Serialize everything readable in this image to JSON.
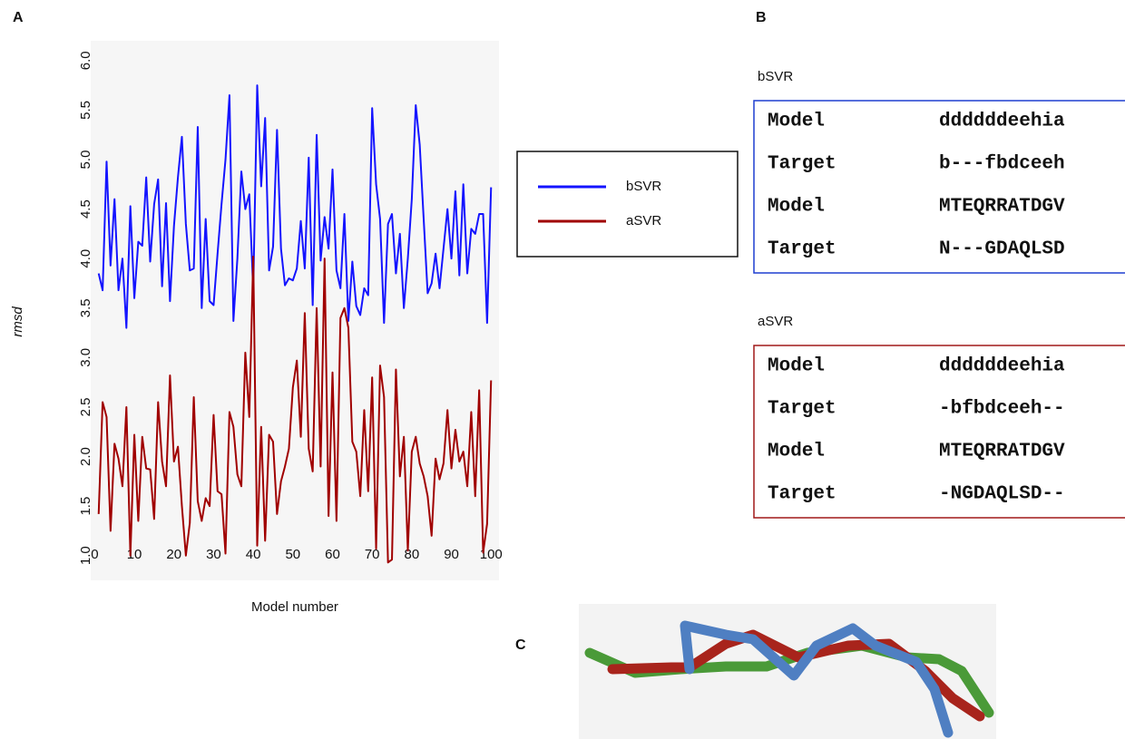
{
  "chart_data": {
    "type": "line",
    "y_label": "rmsd",
    "x_label": "Model number",
    "x": [
      1,
      2,
      3,
      4,
      5,
      6,
      7,
      8,
      9,
      10,
      11,
      12,
      13,
      14,
      15,
      16,
      17,
      18,
      19,
      20,
      21,
      22,
      23,
      24,
      25,
      26,
      27,
      28,
      29,
      30,
      31,
      32,
      33,
      34,
      35,
      36,
      37,
      38,
      39,
      40,
      41,
      42,
      43,
      44,
      45,
      46,
      47,
      48,
      49,
      50,
      51,
      52,
      53,
      54,
      55,
      56,
      57,
      58,
      59,
      60,
      61,
      62,
      63,
      64,
      65,
      66,
      67,
      68,
      69,
      70,
      71,
      72,
      73,
      74,
      75,
      76,
      77,
      78,
      79,
      80,
      81,
      82,
      83,
      84,
      85,
      86,
      87,
      88,
      89,
      90,
      91,
      92,
      93,
      94,
      95,
      96,
      97,
      98,
      99,
      100
    ],
    "series": [
      {
        "name": "bSVR",
        "color": "#1414ff",
        "values": [
          3.85,
          3.68,
          4.98,
          3.93,
          4.6,
          3.68,
          4.0,
          3.3,
          4.53,
          3.6,
          4.17,
          4.13,
          4.82,
          3.97,
          4.55,
          4.8,
          3.72,
          4.56,
          3.57,
          4.33,
          4.82,
          5.23,
          4.35,
          3.88,
          3.9,
          5.33,
          3.5,
          4.4,
          3.57,
          3.53,
          4.05,
          4.55,
          5.0,
          5.65,
          3.37,
          4.0,
          4.88,
          4.5,
          4.65,
          3.68,
          5.75,
          4.73,
          5.42,
          3.88,
          4.12,
          5.3,
          4.1,
          3.73,
          3.8,
          3.78,
          3.9,
          4.38,
          3.9,
          5.02,
          3.53,
          5.25,
          3.98,
          4.42,
          4.1,
          4.9,
          3.88,
          3.7,
          4.45,
          3.37,
          3.97,
          3.52,
          3.43,
          3.7,
          3.63,
          5.52,
          4.75,
          4.4,
          3.35,
          4.35,
          4.45,
          3.85,
          4.25,
          3.5,
          4.0,
          4.6,
          5.55,
          5.15,
          4.4,
          3.65,
          3.75,
          4.05,
          3.7,
          4.1,
          4.5,
          4.0,
          4.68,
          3.83,
          4.75,
          3.85,
          4.3,
          4.25,
          4.45,
          4.45,
          3.35,
          4.72
        ]
      },
      {
        "name": "aSVR",
        "color": "#a00000",
        "values": [
          1.42,
          2.55,
          2.4,
          1.25,
          2.13,
          1.98,
          1.7,
          2.5,
          1.0,
          2.22,
          1.35,
          2.2,
          1.88,
          1.87,
          1.37,
          2.55,
          1.95,
          1.7,
          2.82,
          1.95,
          2.1,
          1.5,
          1.0,
          1.33,
          2.6,
          1.55,
          1.35,
          1.58,
          1.5,
          2.42,
          1.65,
          1.62,
          1.02,
          2.45,
          2.3,
          1.82,
          1.7,
          3.05,
          2.4,
          4.02,
          1.1,
          2.3,
          1.15,
          2.22,
          2.15,
          1.42,
          1.75,
          1.9,
          2.08,
          2.7,
          2.97,
          2.2,
          3.45,
          2.08,
          1.85,
          3.5,
          1.9,
          4.0,
          1.4,
          2.85,
          1.35,
          3.4,
          3.5,
          3.3,
          2.15,
          2.05,
          1.6,
          2.47,
          1.65,
          2.8,
          1.07,
          2.92,
          2.6,
          0.93,
          0.96,
          2.88,
          1.8,
          2.2,
          1.05,
          2.05,
          2.2,
          1.93,
          1.8,
          1.6,
          1.2,
          1.98,
          1.77,
          1.93,
          2.47,
          1.88,
          2.27,
          1.95,
          2.05,
          1.7,
          2.45,
          1.6,
          2.67,
          1.03,
          1.32,
          2.77
        ]
      }
    ],
    "xlim": [
      -1,
      102
    ],
    "xticks": [
      0,
      10,
      20,
      30,
      40,
      50,
      60,
      70,
      80,
      90,
      100
    ],
    "ylim": [
      0.75,
      6.2
    ],
    "yticks": [
      {
        "value": 1,
        "label": "1.0"
      },
      1.5,
      {
        "value": 2,
        "label": "2.0"
      },
      2.5,
      {
        "value": 3,
        "label": "3.0"
      },
      3.5,
      {
        "value": 4,
        "label": "4.0"
      },
      4.5,
      {
        "value": 5,
        "label": "5.0"
      },
      5.5,
      {
        "value": 6,
        "label": "6.0"
      }
    ],
    "legend": "outside-right",
    "grid": false
  },
  "panels": {
    "a": "A",
    "b": "B",
    "c": "C"
  },
  "alignments": [
    {
      "title": "bSVR",
      "border": "#1f3fd0",
      "rows": [
        [
          "Model",
          "ddddddeehia"
        ],
        [
          "Target",
          "b---fbdceeh"
        ],
        [
          "Model",
          "MTEQRRATDGV"
        ],
        [
          "Target",
          "N---GDAQLSD"
        ]
      ]
    },
    {
      "title": "aSVR",
      "border": "#a01818",
      "rows": [
        [
          "Model",
          "ddddddeehia"
        ],
        [
          "Target",
          "-bfbdceeh--"
        ],
        [
          "Model",
          "MTEQRRATDGV"
        ],
        [
          "Target",
          "-NGDAQLSD--"
        ]
      ]
    }
  ]
}
